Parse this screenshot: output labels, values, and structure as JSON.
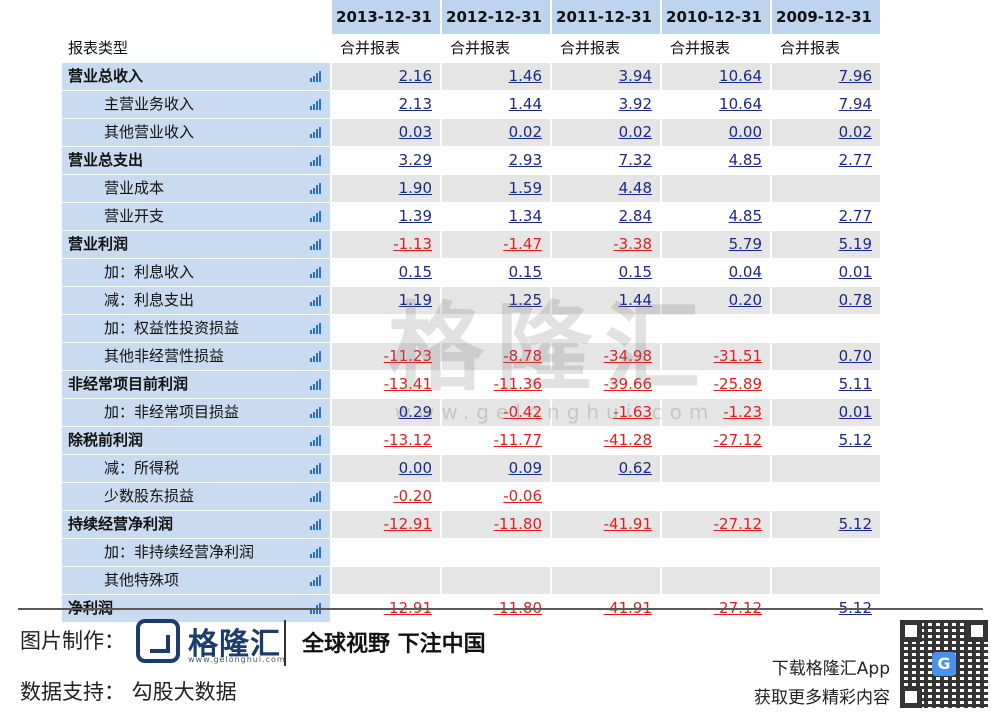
{
  "header": {
    "dates": [
      "2013-12-31",
      "2012-12-31",
      "2011-12-31",
      "2010-12-31",
      "2009-12-31"
    ],
    "type_label": "报表类型",
    "type_value": "合并报表"
  },
  "rows": [
    {
      "label": "营业总收入",
      "bold": true,
      "sub": false,
      "values": [
        "2.16",
        "1.46",
        "3.94",
        "10.64",
        "7.96"
      ]
    },
    {
      "label": "主营业务收入",
      "bold": false,
      "sub": true,
      "values": [
        "2.13",
        "1.44",
        "3.92",
        "10.64",
        "7.94"
      ]
    },
    {
      "label": "其他营业收入",
      "bold": false,
      "sub": true,
      "values": [
        "0.03",
        "0.02",
        "0.02",
        "0.00",
        "0.02"
      ]
    },
    {
      "label": "营业总支出",
      "bold": true,
      "sub": false,
      "values": [
        "3.29",
        "2.93",
        "7.32",
        "4.85",
        "2.77"
      ]
    },
    {
      "label": "营业成本",
      "bold": false,
      "sub": true,
      "values": [
        "1.90",
        "1.59",
        "4.48",
        "",
        ""
      ]
    },
    {
      "label": "营业开支",
      "bold": false,
      "sub": true,
      "values": [
        "1.39",
        "1.34",
        "2.84",
        "4.85",
        "2.77"
      ]
    },
    {
      "label": "营业利润",
      "bold": true,
      "sub": false,
      "values": [
        "-1.13",
        "-1.47",
        "-3.38",
        "5.79",
        "5.19"
      ]
    },
    {
      "label": "加：利息收入",
      "bold": false,
      "sub": true,
      "values": [
        "0.15",
        "0.15",
        "0.15",
        "0.04",
        "0.01"
      ]
    },
    {
      "label": "减：利息支出",
      "bold": false,
      "sub": true,
      "values": [
        "1.19",
        "1.25",
        "1.44",
        "0.20",
        "0.78"
      ]
    },
    {
      "label": "加：权益性投资损益",
      "bold": false,
      "sub": true,
      "values": [
        "",
        "",
        "",
        "",
        ""
      ]
    },
    {
      "label": "其他非经营性损益",
      "bold": false,
      "sub": true,
      "values": [
        "-11.23",
        "-8.78",
        "-34.98",
        "-31.51",
        "0.70"
      ]
    },
    {
      "label": "非经常项目前利润",
      "bold": true,
      "sub": false,
      "values": [
        "-13.41",
        "-11.36",
        "-39.66",
        "-25.89",
        "5.11"
      ]
    },
    {
      "label": "加：非经常项目损益",
      "bold": false,
      "sub": true,
      "values": [
        "0.29",
        "-0.42",
        "-1.63",
        "-1.23",
        "0.01"
      ]
    },
    {
      "label": "除税前利润",
      "bold": true,
      "sub": false,
      "values": [
        "-13.12",
        "-11.77",
        "-41.28",
        "-27.12",
        "5.12"
      ]
    },
    {
      "label": "减：所得税",
      "bold": false,
      "sub": true,
      "values": [
        "0.00",
        "0.09",
        "0.62",
        "",
        ""
      ]
    },
    {
      "label": "少数股东损益",
      "bold": false,
      "sub": true,
      "values": [
        "-0.20",
        "-0.06",
        "",
        "",
        ""
      ]
    },
    {
      "label": "持续经营净利润",
      "bold": true,
      "sub": false,
      "values": [
        "-12.91",
        "-11.80",
        "-41.91",
        "-27.12",
        "5.12"
      ]
    },
    {
      "label": "加：非持续经营净利润",
      "bold": false,
      "sub": true,
      "values": [
        "",
        "",
        "",
        "",
        ""
      ]
    },
    {
      "label": "其他特殊项",
      "bold": false,
      "sub": true,
      "values": [
        "",
        "",
        "",
        "",
        ""
      ]
    },
    {
      "label": "净利润",
      "bold": true,
      "sub": false,
      "values": [
        "-12.91",
        "-11.80",
        "-41.91",
        "-27.12",
        "5.12"
      ]
    }
  ],
  "watermark": {
    "text": "格隆汇",
    "url": "www.gelonghui.com"
  },
  "footer": {
    "made_by_label": "图片制作：",
    "logo_text": "格隆汇",
    "logo_url": "www.gelonghui.com",
    "slogan": "全球视野 下注中国",
    "data_support": "数据支持：  勾股大数据",
    "download": "下载格隆汇App",
    "more": "获取更多精彩内容",
    "qr_badge": "G"
  },
  "colors": {
    "positive": "#1a2a88",
    "negative": "#e02020",
    "label_bg": "#c9dbf1",
    "header_bg": "#bcd4ee"
  },
  "icons": {
    "row_chart": "bar-chart-icon",
    "qr": "qr-code-icon"
  }
}
